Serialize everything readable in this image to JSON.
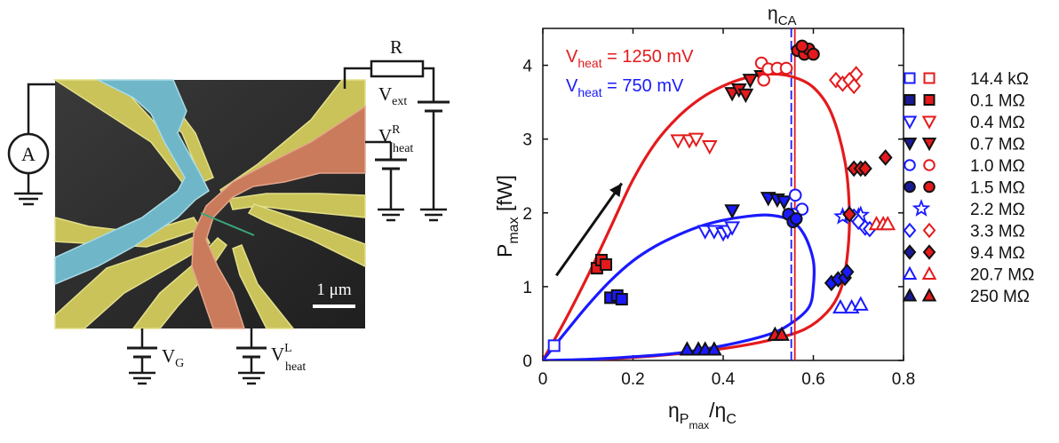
{
  "sem": {
    "scale_bar_label": "1 μm",
    "labels": {
      "ammeter": "A",
      "resistor": "R",
      "v_ext_main": "V",
      "v_ext_sub": "ext",
      "v_heat_r_main": "V",
      "v_heat_r_sup": "R",
      "v_heat_r_sub": "heat",
      "v_g_main": "V",
      "v_g_sub": "G",
      "v_heat_l_main": "V",
      "v_heat_l_sup": "L",
      "v_heat_l_sub": "heat"
    },
    "colors": {
      "gold": "#c9c35a",
      "blue": "#6fb7c8",
      "copper": "#c97b5c",
      "substrate": "#2b2b2b"
    }
  },
  "chart_data": {
    "type": "scatter",
    "xlabel_main": "η",
    "xlabel_sub": "P",
    "xlabel_subsub": "max",
    "xlabel_tail": "/η",
    "xlabel_tail_sub": "C",
    "ylabel_main": "P",
    "ylabel_sub": "max",
    "ylabel_tail": " [fW]",
    "xlim": [
      0,
      0.8
    ],
    "ylim": [
      0,
      4.5
    ],
    "xticks": [
      "0",
      "0.2",
      "0.4",
      "0.6",
      "0.8"
    ],
    "yticks": [
      "0",
      "1",
      "2",
      "3",
      "4"
    ],
    "eta_ca_label": "η",
    "eta_ca_sub": "CA",
    "eta_ca_x": 0.555,
    "annotations": [
      {
        "main": "V",
        "sub": "heat",
        "tail": " = 1250 mV",
        "color": "#e41a1c"
      },
      {
        "main": "V",
        "sub": "heat",
        "tail": " = 750 mV",
        "color": "#1a1aff"
      }
    ],
    "arrow": {
      "from": [
        0.03,
        1.15
      ],
      "to": [
        0.175,
        2.4
      ]
    },
    "curves": [
      {
        "color": "#e41a1c",
        "points": [
          [
            0,
            0
          ],
          [
            0.05,
            0.55
          ],
          [
            0.1,
            1.15
          ],
          [
            0.15,
            1.8
          ],
          [
            0.2,
            2.45
          ],
          [
            0.25,
            2.95
          ],
          [
            0.3,
            3.3
          ],
          [
            0.35,
            3.55
          ],
          [
            0.4,
            3.72
          ],
          [
            0.45,
            3.83
          ],
          [
            0.5,
            3.88
          ],
          [
            0.55,
            3.85
          ],
          [
            0.6,
            3.7
          ],
          [
            0.64,
            3.35
          ],
          [
            0.67,
            2.7
          ],
          [
            0.68,
            2.0
          ],
          [
            0.675,
            1.4
          ],
          [
            0.66,
            0.95
          ],
          [
            0.63,
            0.65
          ],
          [
            0.58,
            0.42
          ],
          [
            0.5,
            0.27
          ],
          [
            0.4,
            0.16
          ],
          [
            0.3,
            0.09
          ],
          [
            0.2,
            0.04
          ],
          [
            0.1,
            0.01
          ],
          [
            0,
            0
          ]
        ]
      },
      {
        "color": "#1a1aff",
        "points": [
          [
            0,
            0
          ],
          [
            0.05,
            0.38
          ],
          [
            0.1,
            0.75
          ],
          [
            0.15,
            1.08
          ],
          [
            0.2,
            1.35
          ],
          [
            0.25,
            1.55
          ],
          [
            0.3,
            1.7
          ],
          [
            0.35,
            1.82
          ],
          [
            0.4,
            1.9
          ],
          [
            0.45,
            1.95
          ],
          [
            0.5,
            1.97
          ],
          [
            0.55,
            1.9
          ],
          [
            0.58,
            1.7
          ],
          [
            0.6,
            1.35
          ],
          [
            0.6,
            1.0
          ],
          [
            0.59,
            0.72
          ],
          [
            0.55,
            0.5
          ],
          [
            0.5,
            0.35
          ],
          [
            0.4,
            0.2
          ],
          [
            0.3,
            0.1
          ],
          [
            0.2,
            0.05
          ],
          [
            0.1,
            0.015
          ],
          [
            0,
            0
          ]
        ]
      }
    ],
    "points": [
      {
        "s": "sqo",
        "p": [
          [
            0.025,
            0.2
          ]
        ],
        "c": "#1a1aff",
        "c2": "#e41a1c"
      },
      {
        "s": "sqf",
        "p": [
          [
            0.12,
            1.25
          ],
          [
            0.13,
            1.36
          ],
          [
            0.14,
            1.3
          ]
        ],
        "c": "#8b0000",
        "c2": "#e41a1c"
      },
      {
        "s": "sqf",
        "p": [
          [
            0.15,
            0.85
          ],
          [
            0.165,
            0.88
          ],
          [
            0.175,
            0.83
          ]
        ],
        "c": "#1a1a99",
        "c2": "#1a1aff"
      },
      {
        "s": "tdo",
        "p": [
          [
            0.3,
            2.98
          ],
          [
            0.325,
            2.98
          ],
          [
            0.34,
            3.0
          ],
          [
            0.37,
            2.9
          ]
        ],
        "c": "#e41a1c",
        "c2": "#e41a1c"
      },
      {
        "s": "tdo",
        "p": [
          [
            0.36,
            1.75
          ],
          [
            0.38,
            1.75
          ],
          [
            0.4,
            1.72
          ],
          [
            0.41,
            1.75
          ],
          [
            0.42,
            1.8
          ]
        ],
        "c": "#1a1aff",
        "c2": "#1a1aff"
      },
      {
        "s": "tdf",
        "p": [
          [
            0.42,
            3.62
          ],
          [
            0.435,
            3.67
          ],
          [
            0.45,
            3.6
          ],
          [
            0.46,
            3.8
          ],
          [
            0.485,
            3.85
          ]
        ],
        "c": "#111111",
        "c2": "#e41a1c"
      },
      {
        "s": "tdf",
        "p": [
          [
            0.42,
            2.03
          ],
          [
            0.5,
            2.2
          ],
          [
            0.52,
            2.18
          ],
          [
            0.535,
            2.15
          ]
        ],
        "c": "#111111",
        "c2": "#1a1aff"
      },
      {
        "s": "cio",
        "p": [
          [
            0.485,
            4.03
          ],
          [
            0.5,
            3.95
          ],
          [
            0.52,
            3.96
          ],
          [
            0.54,
            3.96
          ],
          [
            0.49,
            3.8
          ]
        ],
        "c": "#e41a1c",
        "c2": "#e41a1c"
      },
      {
        "s": "cio",
        "p": [
          [
            0.56,
            2.24
          ],
          [
            0.575,
            2.05
          ],
          [
            0.555,
            1.98
          ]
        ],
        "c": "#1a1aff",
        "c2": "#1a1aff"
      },
      {
        "s": "cif",
        "p": [
          [
            0.565,
            4.2
          ],
          [
            0.58,
            4.15
          ],
          [
            0.59,
            4.22
          ],
          [
            0.6,
            4.15
          ],
          [
            0.575,
            4.26
          ]
        ],
        "c": "#111111",
        "c2": "#e41a1c"
      },
      {
        "s": "cif",
        "p": [
          [
            0.545,
            1.98
          ],
          [
            0.555,
            1.88
          ],
          [
            0.562,
            1.92
          ]
        ],
        "c": "#111111",
        "c2": "#1a1aff"
      },
      {
        "s": "sto",
        "p": [
          [
            0.665,
            1.95
          ],
          [
            0.68,
            1.98
          ],
          [
            0.7,
            1.95
          ],
          [
            0.705,
            1.97
          ]
        ],
        "c": "#1a1aff",
        "c2": "#1a1aff"
      },
      {
        "s": "dio",
        "p": [
          [
            0.65,
            3.8
          ],
          [
            0.665,
            3.75
          ],
          [
            0.68,
            3.8
          ],
          [
            0.69,
            3.72
          ],
          [
            0.695,
            3.88
          ]
        ],
        "c": "#e41a1c",
        "c2": "#e41a1c"
      },
      {
        "s": "dio",
        "p": [
          [
            0.69,
            1.95
          ],
          [
            0.7,
            1.88
          ],
          [
            0.715,
            1.8
          ],
          [
            0.725,
            1.78
          ]
        ],
        "c": "#1a1aff",
        "c2": "#1a1aff"
      },
      {
        "s": "dif",
        "p": [
          [
            0.68,
            1.98
          ],
          [
            0.69,
            2.6
          ],
          [
            0.705,
            2.6
          ],
          [
            0.715,
            2.6
          ],
          [
            0.76,
            2.75
          ]
        ],
        "c": "#111111",
        "c2": "#e41a1c"
      },
      {
        "s": "dif",
        "p": [
          [
            0.64,
            1.05
          ],
          [
            0.655,
            1.1
          ],
          [
            0.67,
            1.12
          ],
          [
            0.675,
            1.2
          ]
        ],
        "c": "#111111",
        "c2": "#1a1aff"
      },
      {
        "s": "tuo",
        "p": [
          [
            0.74,
            1.85
          ],
          [
            0.755,
            1.85
          ],
          [
            0.765,
            1.85
          ]
        ],
        "c": "#e41a1c",
        "c2": "#e41a1c"
      },
      {
        "s": "tuo",
        "p": [
          [
            0.66,
            0.72
          ],
          [
            0.685,
            0.72
          ],
          [
            0.705,
            0.76
          ]
        ],
        "c": "#1a1aff",
        "c2": "#1a1aff"
      },
      {
        "s": "tuf",
        "p": [
          [
            0.515,
            0.35
          ],
          [
            0.53,
            0.35
          ]
        ],
        "c": "#111111",
        "c2": "#e41a1c"
      },
      {
        "s": "tuf",
        "p": [
          [
            0.32,
            0.15
          ],
          [
            0.345,
            0.15
          ],
          [
            0.36,
            0.15
          ],
          [
            0.38,
            0.15
          ]
        ],
        "c": "#111111",
        "c2": "#1a1aff"
      }
    ],
    "legend": [
      {
        "s": "sqo",
        "label": "14.4 kΩ"
      },
      {
        "s": "sqf",
        "label": "0.1   MΩ"
      },
      {
        "s": "tdo",
        "label": "0.4   MΩ"
      },
      {
        "s": "tdf",
        "label": "0.7   MΩ"
      },
      {
        "s": "cio",
        "label": "1.0   MΩ"
      },
      {
        "s": "cif",
        "label": "1.5   MΩ"
      },
      {
        "s": "sto",
        "label": "2.2   MΩ",
        "single": true
      },
      {
        "s": "dio",
        "label": "3.3   MΩ"
      },
      {
        "s": "dif",
        "label": "9.4   MΩ"
      },
      {
        "s": "tuo",
        "label": "20.7 MΩ"
      },
      {
        "s": "tuf",
        "label": "250  MΩ"
      }
    ]
  }
}
